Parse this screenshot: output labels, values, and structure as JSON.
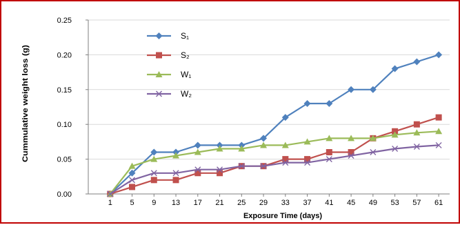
{
  "chart_data": {
    "type": "line",
    "title": "",
    "xlabel": "Exposure Time (days)",
    "ylabel": "Cummulative weight loss (g)",
    "x": [
      1,
      5,
      9,
      13,
      17,
      21,
      25,
      29,
      33,
      37,
      41,
      45,
      49,
      53,
      57,
      61
    ],
    "x_tick_labels": [
      "1",
      "5",
      "9",
      "13",
      "17",
      "21",
      "25",
      "29",
      "33",
      "37",
      "41",
      "45",
      "49",
      "53",
      "57",
      "61"
    ],
    "ylim": [
      0,
      0.25
    ],
    "y_tick_labels": [
      "0.00",
      "0.05",
      "0.10",
      "0.15",
      "0.20",
      "0.25"
    ],
    "grid": "horizontal",
    "legend_position": "top-left",
    "series": [
      {
        "name": "S₁",
        "color": "#4f81bd",
        "marker": "diamond",
        "values": [
          0.0,
          0.03,
          0.06,
          0.06,
          0.07,
          0.07,
          0.07,
          0.08,
          0.11,
          0.13,
          0.13,
          0.15,
          0.15,
          0.18,
          0.19,
          0.2
        ]
      },
      {
        "name": "S₂",
        "color": "#c0504d",
        "marker": "square",
        "values": [
          0.0,
          0.01,
          0.02,
          0.02,
          0.03,
          0.03,
          0.04,
          0.04,
          0.05,
          0.05,
          0.06,
          0.06,
          0.08,
          0.09,
          0.1,
          0.11
        ]
      },
      {
        "name": "W₁",
        "color": "#9bbb59",
        "marker": "triangle",
        "values": [
          0.0,
          0.04,
          0.05,
          0.055,
          0.06,
          0.065,
          0.065,
          0.07,
          0.07,
          0.075,
          0.08,
          0.08,
          0.08,
          0.085,
          0.088,
          0.09
        ]
      },
      {
        "name": "W₂",
        "color": "#8064a2",
        "marker": "x",
        "values": [
          0.0,
          0.02,
          0.03,
          0.03,
          0.035,
          0.035,
          0.04,
          0.04,
          0.045,
          0.045,
          0.05,
          0.055,
          0.06,
          0.065,
          0.068,
          0.07
        ]
      }
    ]
  }
}
